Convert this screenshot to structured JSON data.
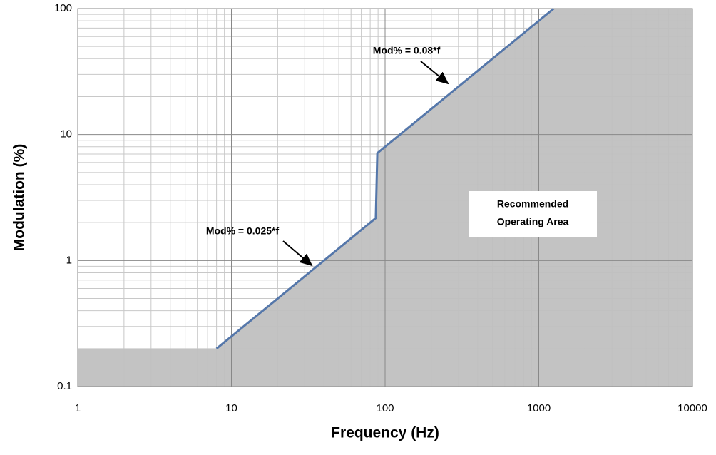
{
  "chart_data": {
    "type": "line",
    "xlabel": "Frequency (Hz)",
    "ylabel": "Modulation (%)",
    "x": [
      8,
      87,
      89,
      1250
    ],
    "values": [
      0.2,
      2.175,
      7.12,
      100
    ],
    "color": "#5577aa",
    "fill_color": "#c0c0c0",
    "xlim": [
      1,
      10000
    ],
    "ylim": [
      0.1,
      100
    ],
    "xticks": [
      1,
      10,
      100,
      1000,
      10000
    ],
    "yticks": [
      0.1,
      1,
      10,
      100
    ],
    "xscale": "log",
    "yscale": "log",
    "grid": true,
    "minor_grid": true,
    "annotations": [
      "Mod% = 0.025*f",
      "Mod% = 0.08*f"
    ],
    "area_label": [
      "Recommended",
      "Operating Area"
    ]
  }
}
